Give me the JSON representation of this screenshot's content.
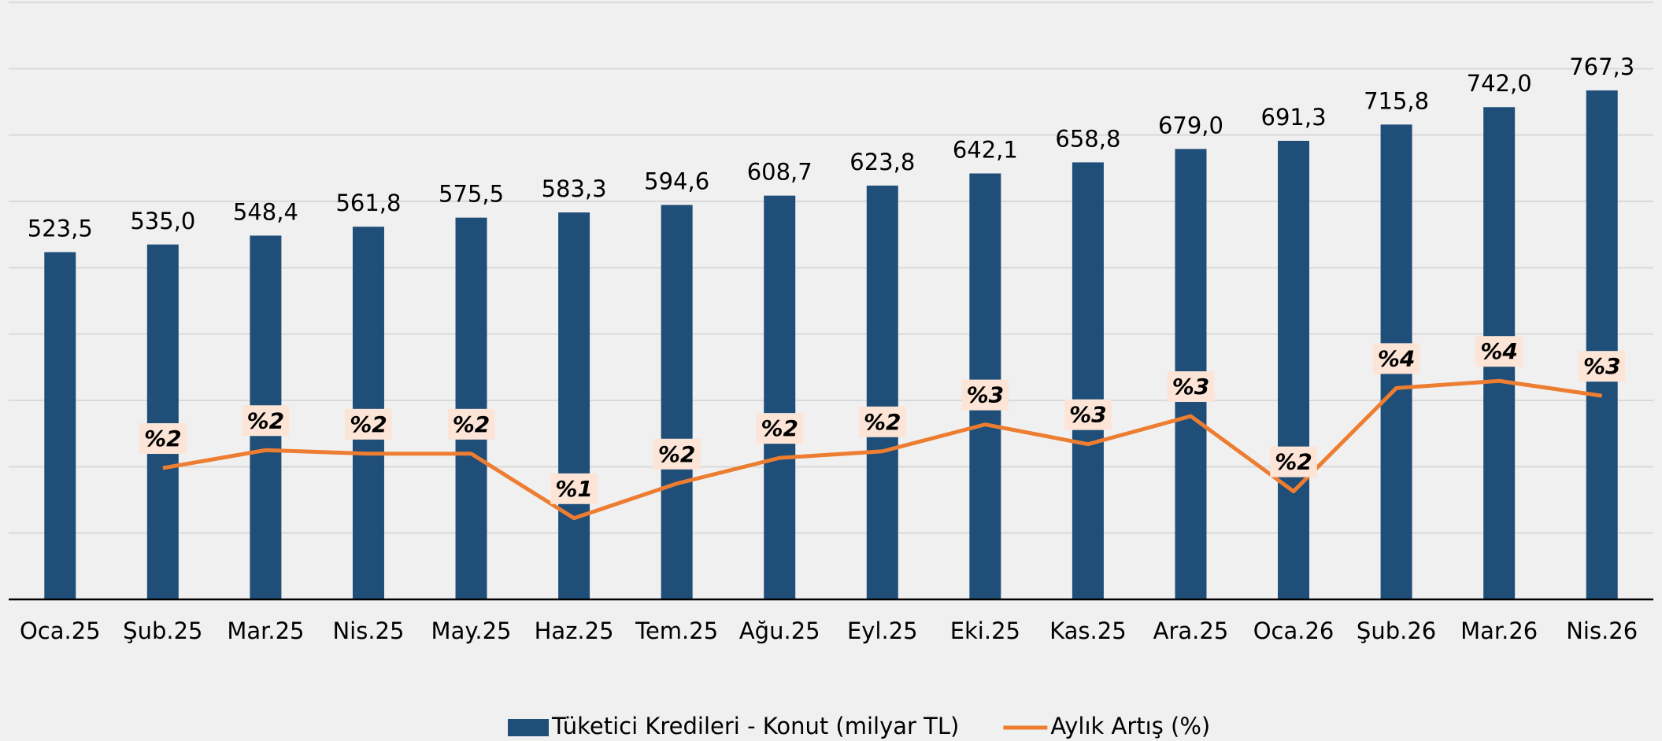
{
  "chart_data": {
    "type": "bar",
    "categories": [
      "Oca.25",
      "Şub.25",
      "Mar.25",
      "Nis.25",
      "May.25",
      "Haz.25",
      "Tem.25",
      "Ağu.25",
      "Eyl.25",
      "Eki.25",
      "Kas.25",
      "Ara.25",
      "Oca.26",
      "Şub.26",
      "Mar.26",
      "Nis.26"
    ],
    "series": [
      {
        "name": "Tüketici Kredileri - Konut (milyar TL)",
        "type": "bar",
        "color": "#1f4e79",
        "values": [
          523.5,
          535.0,
          548.4,
          561.8,
          575.5,
          583.3,
          594.6,
          608.7,
          623.8,
          642.1,
          658.8,
          679.0,
          691.3,
          715.8,
          742.0,
          767.3
        ],
        "value_labels": [
          "523,5",
          "535,0",
          "548,4",
          "561,8",
          "575,5",
          "583,3",
          "594,6",
          "608,7",
          "623,8",
          "642,1",
          "658,8",
          "679,0",
          "691,3",
          "715,8",
          "742,0",
          "767,3"
        ]
      },
      {
        "name": "Aylık Artış (%)",
        "type": "line",
        "axis": "y2",
        "color": "#ed7d31",
        "values": [
          null,
          2.2,
          2.5,
          2.44,
          2.44,
          1.36,
          1.94,
          2.37,
          2.48,
          2.93,
          2.6,
          3.07,
          1.81,
          3.54,
          3.66,
          3.41
        ],
        "value_labels": [
          null,
          "%2",
          "%2",
          "%2",
          "%2",
          "%1",
          "%2",
          "%2",
          "%2",
          "%3",
          "%3",
          "%3",
          "%2",
          "%4",
          "%4",
          "%3"
        ]
      }
    ],
    "ylim": [
      0,
      900
    ],
    "yticks": [
      0,
      100,
      200,
      300,
      400,
      500,
      600,
      700,
      800,
      900
    ],
    "y2lim": [
      0,
      10
    ],
    "grid": true,
    "legend": "bottom"
  }
}
